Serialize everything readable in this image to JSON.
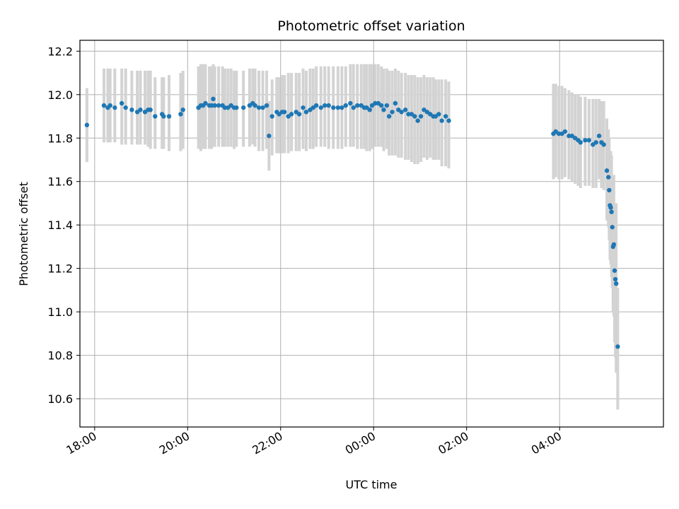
{
  "chart_data": {
    "type": "scatter",
    "title": "Photometric offset variation",
    "xlabel": "UTC time",
    "ylabel": "Photometric offset",
    "grid": true,
    "xlim": [
      "17:41",
      "06:14"
    ],
    "ylim": [
      10.47,
      12.25
    ],
    "x_ticks": [
      "18:00",
      "20:00",
      "22:00",
      "00:00",
      "02:00",
      "04:00"
    ],
    "y_ticks": [
      "10.6",
      "10.8",
      "11.0",
      "11.2",
      "11.4",
      "11.6",
      "11.8",
      "12.0",
      "12.2"
    ],
    "point_color": "#1f77b4",
    "errorbar_color": "#d3d3d3",
    "series": [
      {
        "x": [
          "17:50",
          "18:12",
          "18:17",
          "18:20",
          "18:26",
          "18:35",
          "18:40",
          "18:48",
          "18:55",
          "18:59",
          "19:05",
          "19:09",
          "19:12",
          "19:18",
          "19:27",
          "19:29",
          "19:36",
          "19:51",
          "19:54",
          "20:14",
          "20:17",
          "20:20",
          "20:23",
          "20:28",
          "20:31",
          "20:33",
          "20:35",
          "20:40",
          "20:45",
          "20:48",
          "20:52",
          "20:56",
          "21:00",
          "21:03",
          "21:12",
          "21:20",
          "21:24",
          "21:27",
          "21:32",
          "21:37",
          "21:42",
          "21:45",
          "21:49",
          "21:55",
          "21:58",
          "22:02",
          "22:05",
          "22:10",
          "22:14",
          "22:20",
          "22:24",
          "22:29",
          "22:33",
          "22:38",
          "22:42",
          "22:46",
          "22:52",
          "22:57",
          "23:02",
          "23:08",
          "23:14",
          "23:19",
          "23:24",
          "23:30",
          "23:34",
          "23:39",
          "23:44",
          "23:48",
          "23:51",
          "23:55",
          "23:58",
          "00:02",
          "00:06",
          "00:10",
          "00:13",
          "00:17",
          "00:20",
          "00:24",
          "00:28",
          "00:32",
          "00:36",
          "00:41",
          "00:45",
          "00:49",
          "00:53",
          "00:57",
          "01:01",
          "01:05",
          "01:09",
          "01:13",
          "01:17",
          "01:20",
          "01:24",
          "01:28",
          "01:33",
          "01:37",
          "03:52",
          "03:55",
          "03:59",
          "04:03",
          "04:07",
          "04:12",
          "04:16",
          "04:20",
          "04:24",
          "04:27",
          "04:33",
          "04:38",
          "04:43",
          "04:47",
          "04:51",
          "04:54",
          "04:57",
          "05:01",
          "05:03",
          "05:04",
          "05:05",
          "05:06",
          "05:07",
          "05:08",
          "05:09",
          "05:10",
          "05:11",
          "05:12",
          "05:13",
          "05:15"
        ],
        "y": [
          11.86,
          11.95,
          11.94,
          11.95,
          11.94,
          11.96,
          11.94,
          11.93,
          11.92,
          11.93,
          11.92,
          11.93,
          11.93,
          11.9,
          11.91,
          11.9,
          11.9,
          11.91,
          11.93,
          11.94,
          11.95,
          11.95,
          11.96,
          11.95,
          11.95,
          11.98,
          11.95,
          11.95,
          11.95,
          11.94,
          11.94,
          11.95,
          11.94,
          11.94,
          11.94,
          11.95,
          11.96,
          11.95,
          11.94,
          11.94,
          11.95,
          11.81,
          11.9,
          11.92,
          11.91,
          11.92,
          11.92,
          11.9,
          11.91,
          11.92,
          11.91,
          11.94,
          11.92,
          11.93,
          11.94,
          11.95,
          11.94,
          11.95,
          11.95,
          11.94,
          11.94,
          11.94,
          11.95,
          11.96,
          11.94,
          11.95,
          11.95,
          11.94,
          11.94,
          11.93,
          11.95,
          11.96,
          11.96,
          11.95,
          11.93,
          11.95,
          11.9,
          11.92,
          11.96,
          11.93,
          11.92,
          11.93,
          11.91,
          11.91,
          11.9,
          11.88,
          11.9,
          11.93,
          11.92,
          11.91,
          11.9,
          11.9,
          11.91,
          11.88,
          11.9,
          11.88,
          11.82,
          11.83,
          11.82,
          11.82,
          11.83,
          11.81,
          11.81,
          11.8,
          11.79,
          11.78,
          11.79,
          11.79,
          11.77,
          11.78,
          11.81,
          11.78,
          11.77,
          11.65,
          11.62,
          11.56,
          11.49,
          11.48,
          11.46,
          11.39,
          11.3,
          11.31,
          11.19,
          11.15,
          11.13,
          10.84
        ],
        "err_low": [
          11.69,
          11.78,
          11.78,
          11.78,
          11.78,
          11.77,
          11.77,
          11.77,
          11.77,
          11.77,
          11.77,
          11.76,
          11.75,
          11.75,
          11.75,
          11.75,
          11.74,
          11.74,
          11.75,
          11.75,
          11.74,
          11.75,
          11.75,
          11.75,
          11.75,
          11.76,
          11.76,
          11.76,
          11.76,
          11.76,
          11.76,
          11.76,
          11.75,
          11.76,
          11.76,
          11.76,
          11.77,
          11.76,
          11.74,
          11.74,
          11.75,
          11.65,
          11.72,
          11.73,
          11.73,
          11.73,
          11.73,
          11.73,
          11.74,
          11.74,
          11.74,
          11.75,
          11.74,
          11.75,
          11.75,
          11.76,
          11.76,
          11.76,
          11.75,
          11.75,
          11.75,
          11.75,
          11.76,
          11.76,
          11.76,
          11.75,
          11.75,
          11.75,
          11.74,
          11.74,
          11.75,
          11.76,
          11.76,
          11.76,
          11.74,
          11.75,
          11.72,
          11.72,
          11.72,
          11.71,
          11.71,
          11.7,
          11.7,
          11.69,
          11.68,
          11.68,
          11.69,
          11.71,
          11.7,
          11.71,
          11.7,
          11.7,
          11.7,
          11.67,
          11.67,
          11.66,
          11.61,
          11.62,
          11.61,
          11.61,
          11.62,
          11.61,
          11.6,
          11.59,
          11.58,
          11.57,
          11.58,
          11.58,
          11.57,
          11.57,
          11.61,
          11.57,
          11.56,
          11.42,
          11.39,
          11.33,
          11.24,
          11.22,
          11.16,
          11.11,
          11.0,
          10.98,
          10.86,
          10.79,
          10.72,
          10.55
        ],
        "err_high": [
          12.03,
          12.12,
          12.12,
          12.12,
          12.12,
          12.12,
          12.12,
          12.11,
          12.11,
          12.11,
          12.11,
          12.11,
          12.11,
          12.08,
          12.08,
          12.08,
          12.09,
          12.1,
          12.11,
          12.13,
          12.14,
          12.14,
          12.14,
          12.13,
          12.13,
          12.14,
          12.13,
          12.13,
          12.13,
          12.12,
          12.12,
          12.12,
          12.11,
          12.11,
          12.11,
          12.12,
          12.12,
          12.12,
          12.11,
          12.11,
          12.11,
          11.97,
          12.07,
          12.08,
          12.08,
          12.09,
          12.09,
          12.1,
          12.1,
          12.1,
          12.1,
          12.12,
          12.11,
          12.12,
          12.12,
          12.13,
          12.13,
          12.13,
          12.13,
          12.13,
          12.13,
          12.13,
          12.13,
          12.14,
          12.14,
          12.14,
          12.14,
          12.14,
          12.14,
          12.14,
          12.14,
          12.14,
          12.14,
          12.13,
          12.12,
          12.12,
          12.11,
          12.11,
          12.12,
          12.11,
          12.1,
          12.1,
          12.09,
          12.09,
          12.09,
          12.08,
          12.08,
          12.09,
          12.08,
          12.08,
          12.08,
          12.07,
          12.07,
          12.07,
          12.07,
          12.06,
          12.05,
          12.05,
          12.04,
          12.04,
          12.03,
          12.02,
          12.01,
          12.0,
          12.0,
          11.99,
          11.99,
          11.98,
          11.98,
          11.98,
          11.98,
          11.97,
          11.97,
          11.89,
          11.84,
          11.8,
          11.72,
          11.74,
          11.72,
          11.62,
          11.6,
          11.63,
          11.49,
          11.49,
          11.5,
          11.11
        ]
      }
    ]
  }
}
